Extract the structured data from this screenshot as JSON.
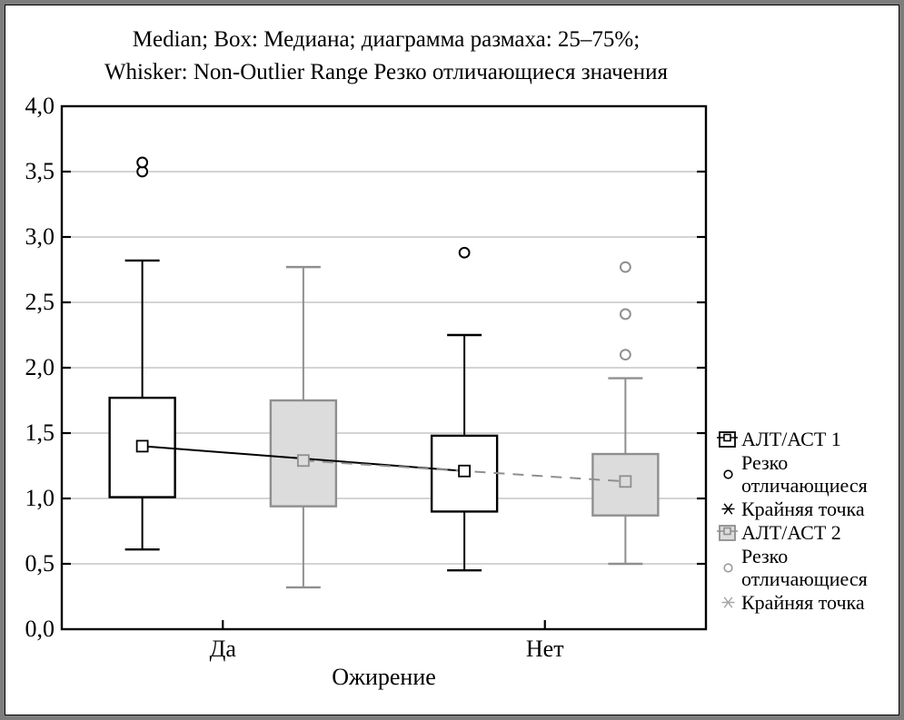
{
  "chart_data": {
    "type": "boxplot",
    "title": "Median; Box: Медиана; диаграмма размаха: 25–75%; Whisker: Non-Outlier Range Резко отличающиеся значения",
    "title_lines": [
      "Median; Box: Медиана; диаграмма размаха: 25–75%;",
      "Whisker: Non-Outlier Range Резко отличающиеся значения"
    ],
    "xlabel": "Ожирение",
    "categories": [
      "Да",
      "Нет"
    ],
    "ylim": [
      0.0,
      4.0
    ],
    "ytick_step": 0.5,
    "yticks": [
      {
        "value": 0.0,
        "label": "0,0"
      },
      {
        "value": 0.5,
        "label": "0,5"
      },
      {
        "value": 1.0,
        "label": "1,0"
      },
      {
        "value": 1.5,
        "label": "1,5"
      },
      {
        "value": 2.0,
        "label": "2,0"
      },
      {
        "value": 2.5,
        "label": "2,5"
      },
      {
        "value": 3.0,
        "label": "3,0"
      },
      {
        "value": 3.5,
        "label": "3,5"
      },
      {
        "value": 4.0,
        "label": "4,0"
      }
    ],
    "grid": "horizontal",
    "legend_position": "right",
    "colors": {
      "grid": "#c6c6c6",
      "frame": "#000000",
      "series1_stroke": "#000000",
      "series1_fill": "#ffffff",
      "series2_stroke": "#8f8f8f",
      "series2_fill": "#dcdcdc"
    },
    "series": [
      {
        "name": "АЛТ/АСТ 1",
        "stroke": "#000000",
        "fill": "#ffffff",
        "line_style": "solid",
        "boxes": [
          {
            "category": "Да",
            "median": 1.4,
            "q1": 1.01,
            "q3": 1.77,
            "whisker_low": 0.61,
            "whisker_high": 2.82,
            "outliers": [
              3.5,
              3.57
            ]
          },
          {
            "category": "Нет",
            "median": 1.21,
            "q1": 0.9,
            "q3": 1.48,
            "whisker_low": 0.45,
            "whisker_high": 2.25,
            "outliers": [
              2.88
            ]
          }
        ]
      },
      {
        "name": "АЛТ/АСТ 2",
        "stroke": "#8f8f8f",
        "fill": "#dcdcdc",
        "line_style": "dashed",
        "boxes": [
          {
            "category": "Да",
            "median": 1.29,
            "q1": 0.94,
            "q3": 1.75,
            "whisker_low": 0.32,
            "whisker_high": 2.77,
            "outliers": []
          },
          {
            "category": "Нет",
            "median": 1.13,
            "q1": 0.87,
            "q3": 1.34,
            "whisker_low": 0.5,
            "whisker_high": 1.92,
            "outliers": [
              2.1,
              2.41,
              2.77
            ]
          }
        ]
      }
    ],
    "legend": [
      {
        "symbol": "box1",
        "label": "АЛТ/АСТ 1"
      },
      {
        "symbol": "circle1",
        "label": "Резко отличающиеся"
      },
      {
        "symbol": "star1",
        "label": "Крайняя точка"
      },
      {
        "symbol": "box2",
        "label": "АЛТ/АСТ 2"
      },
      {
        "symbol": "circle2",
        "label": "Резко отличающиеся"
      },
      {
        "symbol": "star2",
        "label": "Крайняя точка"
      }
    ]
  }
}
